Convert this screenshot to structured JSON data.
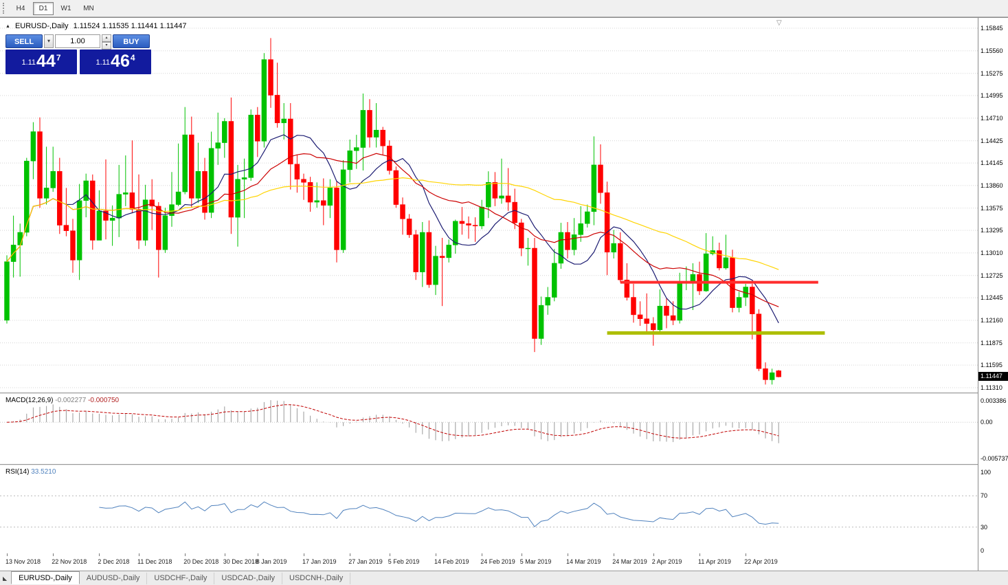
{
  "toolbar": {
    "timeframes": [
      {
        "label": "H4",
        "active": false
      },
      {
        "label": "D1",
        "active": true
      },
      {
        "label": "W1",
        "active": false
      },
      {
        "label": "MN",
        "active": false
      }
    ]
  },
  "icons": {
    "collapse": "▲",
    "scroll_marker": "▽",
    "dropdown": "▾",
    "spin_up": "▴",
    "spin_down": "▾",
    "tab_corner": "◣"
  },
  "chart": {
    "symbol_header": "EURUSD-,Daily",
    "ohlc_text": "1.11524 1.11535 1.11441 1.11447",
    "open": "1.11524",
    "high": "1.11535",
    "low": "1.11441",
    "close": "1.11447",
    "current_price": "1.11447",
    "price_axis_labels": [
      "1.15845",
      "1.15560",
      "1.15275",
      "1.14995",
      "1.14710",
      "1.14425",
      "1.14145",
      "1.13860",
      "1.13575",
      "1.13295",
      "1.13010",
      "1.12725",
      "1.12445",
      "1.12160",
      "1.11875",
      "1.11595",
      "1.11310"
    ],
    "date_axis": [
      {
        "label": "13 Nov 2018",
        "bar": 0
      },
      {
        "label": "22 Nov 2018",
        "bar": 7
      },
      {
        "label": "2 Dec 2018",
        "bar": 14
      },
      {
        "label": "11 Dec 2018",
        "bar": 20
      },
      {
        "label": "20 Dec 2018",
        "bar": 27
      },
      {
        "label": "30 Dec 2018",
        "bar": 33
      },
      {
        "label": "8 Jan 2019",
        "bar": 38
      },
      {
        "label": "17 Jan 2019",
        "bar": 45
      },
      {
        "label": "27 Jan 2019",
        "bar": 52
      },
      {
        "label": "5 Feb 2019",
        "bar": 58
      },
      {
        "label": "14 Feb 2019",
        "bar": 65
      },
      {
        "label": "24 Feb 2019",
        "bar": 72
      },
      {
        "label": "5 Mar 2019",
        "bar": 78
      },
      {
        "label": "14 Mar 2019",
        "bar": 85
      },
      {
        "label": "24 Mar 2019",
        "bar": 92
      },
      {
        "label": "2 Apr 2019",
        "bar": 98
      },
      {
        "label": "11 Apr 2019",
        "bar": 105
      },
      {
        "label": "22 Apr 2019",
        "bar": 112
      }
    ]
  },
  "trade_panel": {
    "sell_label": "SELL",
    "buy_label": "BUY",
    "volume": "1.00",
    "sell_price": {
      "base": "1.11",
      "big": "44",
      "sup": "7"
    },
    "buy_price": {
      "base": "1.11",
      "big": "46",
      "sup": "4"
    }
  },
  "macd_panel": {
    "label": "MACD(12,26,9)",
    "value_main": "-0.002277",
    "value_signal": "-0.000750",
    "axis": [
      "0.003386",
      "0.00",
      "-0.005737"
    ],
    "params": {
      "fast": 12,
      "slow": 26,
      "signal": 9
    }
  },
  "rsi_panel": {
    "label": "RSI(14)",
    "value": "33.5210",
    "period": 14,
    "levels": [
      70,
      30
    ],
    "axis": [
      "100",
      "70",
      "30",
      "0"
    ]
  },
  "tabs": [
    {
      "label": "EURUSD-,Daily",
      "active": true
    },
    {
      "label": "AUDUSD-,Daily",
      "active": false
    },
    {
      "label": "USDCHF-,Daily",
      "active": false
    },
    {
      "label": "USDCAD-,Daily",
      "active": false
    },
    {
      "label": "USDCNH-,Daily",
      "active": false
    }
  ],
  "colors": {
    "candle_up": "#00C200",
    "candle_down": "#FF0000",
    "ma_fast": "#1C1C72",
    "ma_mid": "#CC0000",
    "ma_slow": "#FFD400",
    "resistance": "#FF2D2D",
    "support": "#ADBE00",
    "macd_hist": "#999999",
    "macd_signal": "#C00000",
    "rsi_line": "#4F81BD",
    "grid": "#D4D4D4",
    "tag_bg": "#000000",
    "panel_blue": "#121B9E",
    "button_blue": "#2A5CC0"
  },
  "chart_data": {
    "type": "candlestick",
    "title": "EURUSD-,Daily",
    "symbol": "EURUSD",
    "timeframe": "Daily",
    "y_axis_range": [
      1.11249,
      1.15975
    ],
    "grid": "horizontal-dotted",
    "dates": [
      "2018-11-13",
      "2018-11-14",
      "2018-11-15",
      "2018-11-16",
      "2018-11-19",
      "2018-11-20",
      "2018-11-21",
      "2018-11-22",
      "2018-11-23",
      "2018-11-26",
      "2018-11-27",
      "2018-11-28",
      "2018-11-29",
      "2018-11-30",
      "2018-12-03",
      "2018-12-04",
      "2018-12-05",
      "2018-12-06",
      "2018-12-07",
      "2018-12-10",
      "2018-12-11",
      "2018-12-12",
      "2018-12-13",
      "2018-12-14",
      "2018-12-17",
      "2018-12-18",
      "2018-12-19",
      "2018-12-20",
      "2018-12-21",
      "2018-12-24",
      "2018-12-26",
      "2018-12-27",
      "2018-12-28",
      "2018-12-31",
      "2019-01-02",
      "2019-01-03",
      "2019-01-04",
      "2019-01-07",
      "2019-01-08",
      "2019-01-09",
      "2019-01-10",
      "2019-01-11",
      "2019-01-14",
      "2019-01-15",
      "2019-01-16",
      "2019-01-17",
      "2019-01-18",
      "2019-01-21",
      "2019-01-22",
      "2019-01-23",
      "2019-01-24",
      "2019-01-25",
      "2019-01-28",
      "2019-01-29",
      "2019-01-30",
      "2019-01-31",
      "2019-02-01",
      "2019-02-04",
      "2019-02-05",
      "2019-02-06",
      "2019-02-07",
      "2019-02-08",
      "2019-02-11",
      "2019-02-12",
      "2019-02-13",
      "2019-02-14",
      "2019-02-15",
      "2019-02-18",
      "2019-02-19",
      "2019-02-20",
      "2019-02-21",
      "2019-02-22",
      "2019-02-25",
      "2019-02-26",
      "2019-02-27",
      "2019-02-28",
      "2019-03-01",
      "2019-03-04",
      "2019-03-05",
      "2019-03-06",
      "2019-03-07",
      "2019-03-08",
      "2019-03-11",
      "2019-03-12",
      "2019-03-13",
      "2019-03-14",
      "2019-03-15",
      "2019-03-18",
      "2019-03-19",
      "2019-03-20",
      "2019-03-21",
      "2019-03-22",
      "2019-03-25",
      "2019-03-26",
      "2019-03-27",
      "2019-03-28",
      "2019-03-29",
      "2019-04-01",
      "2019-04-02",
      "2019-04-03",
      "2019-04-04",
      "2019-04-05",
      "2019-04-08",
      "2019-04-09",
      "2019-04-10",
      "2019-04-11",
      "2019-04-12",
      "2019-04-15",
      "2019-04-16",
      "2019-04-17",
      "2019-04-18",
      "2019-04-19",
      "2019-04-22",
      "2019-04-23",
      "2019-04-24",
      "2019-04-25",
      "2019-04-26",
      "2019-04-29"
    ],
    "ohlc": [
      [
        1.1216,
        1.1298,
        1.1212,
        1.129
      ],
      [
        1.129,
        1.1348,
        1.127,
        1.1311
      ],
      [
        1.1311,
        1.1338,
        1.1271,
        1.1327
      ],
      [
        1.1327,
        1.1421,
        1.1322,
        1.1417
      ],
      [
        1.1417,
        1.1466,
        1.1394,
        1.1454
      ],
      [
        1.1454,
        1.1472,
        1.1358,
        1.137
      ],
      [
        1.137,
        1.1435,
        1.1362,
        1.1383
      ],
      [
        1.1383,
        1.1435,
        1.1378,
        1.1404
      ],
      [
        1.1404,
        1.1421,
        1.1325,
        1.1336
      ],
      [
        1.1336,
        1.1383,
        1.1322,
        1.1329
      ],
      [
        1.1329,
        1.1344,
        1.1276,
        1.1292
      ],
      [
        1.1292,
        1.1388,
        1.1267,
        1.1367
      ],
      [
        1.1367,
        1.1401,
        1.1346,
        1.1392
      ],
      [
        1.1392,
        1.14,
        1.1305,
        1.1317
      ],
      [
        1.1317,
        1.138,
        1.1317,
        1.1354
      ],
      [
        1.1354,
        1.1419,
        1.1318,
        1.1342
      ],
      [
        1.1342,
        1.1361,
        1.131,
        1.1345
      ],
      [
        1.1345,
        1.1412,
        1.1321,
        1.1375
      ],
      [
        1.1375,
        1.1424,
        1.136,
        1.1377
      ],
      [
        1.1377,
        1.1443,
        1.1351,
        1.1356
      ],
      [
        1.1356,
        1.14,
        1.1306,
        1.1317
      ],
      [
        1.1317,
        1.1387,
        1.131,
        1.1368
      ],
      [
        1.1368,
        1.1394,
        1.133,
        1.136
      ],
      [
        1.136,
        1.1365,
        1.127,
        1.1305
      ],
      [
        1.1305,
        1.1358,
        1.1301,
        1.1348
      ],
      [
        1.1348,
        1.1403,
        1.1334,
        1.1362
      ],
      [
        1.1362,
        1.1439,
        1.136,
        1.1378
      ],
      [
        1.1378,
        1.1485,
        1.1375,
        1.145
      ],
      [
        1.145,
        1.1473,
        1.1358,
        1.137
      ],
      [
        1.137,
        1.144,
        1.1364,
        1.1404
      ],
      [
        1.1404,
        1.1421,
        1.1343,
        1.1352
      ],
      [
        1.1352,
        1.1454,
        1.1345,
        1.1433
      ],
      [
        1.1433,
        1.1478,
        1.1412,
        1.144
      ],
      [
        1.144,
        1.1471,
        1.1421,
        1.1467
      ],
      [
        1.1467,
        1.1497,
        1.1325,
        1.1346
      ],
      [
        1.1346,
        1.1412,
        1.1309,
        1.1394
      ],
      [
        1.1394,
        1.142,
        1.1345,
        1.1396
      ],
      [
        1.1396,
        1.1482,
        1.1392,
        1.1475
      ],
      [
        1.1475,
        1.1485,
        1.1422,
        1.1442
      ],
      [
        1.1442,
        1.1553,
        1.1434,
        1.1545
      ],
      [
        1.1545,
        1.1572,
        1.1484,
        1.15
      ],
      [
        1.15,
        1.1541,
        1.1459,
        1.1465
      ],
      [
        1.1465,
        1.149,
        1.1444,
        1.147
      ],
      [
        1.147,
        1.149,
        1.1381,
        1.1413
      ],
      [
        1.1413,
        1.1425,
        1.1377,
        1.1394
      ],
      [
        1.1394,
        1.1401,
        1.1368,
        1.139
      ],
      [
        1.139,
        1.1397,
        1.1353,
        1.1365
      ],
      [
        1.1365,
        1.139,
        1.1358,
        1.1367
      ],
      [
        1.1367,
        1.1395,
        1.1336,
        1.1361
      ],
      [
        1.1361,
        1.1394,
        1.1345,
        1.1383
      ],
      [
        1.1383,
        1.1392,
        1.1289,
        1.1305
      ],
      [
        1.1305,
        1.1418,
        1.1301,
        1.1406
      ],
      [
        1.1406,
        1.1444,
        1.139,
        1.143
      ],
      [
        1.143,
        1.145,
        1.1407,
        1.1434
      ],
      [
        1.1434,
        1.1502,
        1.1405,
        1.1481
      ],
      [
        1.1481,
        1.1495,
        1.1434,
        1.1447
      ],
      [
        1.1447,
        1.149,
        1.1434,
        1.1456
      ],
      [
        1.1456,
        1.146,
        1.1425,
        1.1436
      ],
      [
        1.1436,
        1.1443,
        1.14,
        1.1405
      ],
      [
        1.1405,
        1.141,
        1.1358,
        1.1362
      ],
      [
        1.1362,
        1.1371,
        1.1324,
        1.1344
      ],
      [
        1.1344,
        1.135,
        1.132,
        1.1324
      ],
      [
        1.1324,
        1.133,
        1.1267,
        1.1277
      ],
      [
        1.1277,
        1.134,
        1.1258,
        1.1327
      ],
      [
        1.1327,
        1.1342,
        1.1257,
        1.1261
      ],
      [
        1.1261,
        1.131,
        1.1248,
        1.1297
      ],
      [
        1.1297,
        1.132,
        1.1234,
        1.1295
      ],
      [
        1.1295,
        1.1318,
        1.1289,
        1.1311
      ],
      [
        1.1311,
        1.1343,
        1.13,
        1.1341
      ],
      [
        1.1341,
        1.1359,
        1.1324,
        1.1338
      ],
      [
        1.1338,
        1.1347,
        1.1319,
        1.1336
      ],
      [
        1.1336,
        1.1346,
        1.1315,
        1.1335
      ],
      [
        1.1335,
        1.1368,
        1.1331,
        1.1359
      ],
      [
        1.1359,
        1.1404,
        1.1345,
        1.139
      ],
      [
        1.139,
        1.1403,
        1.136,
        1.137
      ],
      [
        1.137,
        1.142,
        1.1363,
        1.1373
      ],
      [
        1.1373,
        1.1408,
        1.1354,
        1.1365
      ],
      [
        1.1365,
        1.1382,
        1.1331,
        1.1339
      ],
      [
        1.1339,
        1.1344,
        1.1297,
        1.1307
      ],
      [
        1.1307,
        1.132,
        1.1285,
        1.1307
      ],
      [
        1.1307,
        1.132,
        1.1176,
        1.1193
      ],
      [
        1.1193,
        1.1246,
        1.1185,
        1.1235
      ],
      [
        1.1235,
        1.1258,
        1.1223,
        1.1245
      ],
      [
        1.1245,
        1.1306,
        1.124,
        1.1288
      ],
      [
        1.1288,
        1.1339,
        1.1281,
        1.1327
      ],
      [
        1.1327,
        1.134,
        1.1294,
        1.1305
      ],
      [
        1.1305,
        1.1345,
        1.1298,
        1.1324
      ],
      [
        1.1324,
        1.136,
        1.1315,
        1.1338
      ],
      [
        1.1338,
        1.1362,
        1.1333,
        1.1353
      ],
      [
        1.1353,
        1.1448,
        1.1336,
        1.1412
      ],
      [
        1.1412,
        1.1438,
        1.1363,
        1.1377
      ],
      [
        1.1377,
        1.1391,
        1.1273,
        1.1302
      ],
      [
        1.1302,
        1.133,
        1.1294,
        1.1313
      ],
      [
        1.1313,
        1.1327,
        1.1264,
        1.1267
      ],
      [
        1.1267,
        1.1288,
        1.1241,
        1.1245
      ],
      [
        1.1245,
        1.1262,
        1.1213,
        1.1223
      ],
      [
        1.1223,
        1.124,
        1.1209,
        1.1218
      ],
      [
        1.1218,
        1.125,
        1.1199,
        1.1212
      ],
      [
        1.1212,
        1.122,
        1.1184,
        1.1204
      ],
      [
        1.1204,
        1.1255,
        1.12,
        1.1234
      ],
      [
        1.1234,
        1.1244,
        1.1206,
        1.1222
      ],
      [
        1.1222,
        1.124,
        1.121,
        1.1216
      ],
      [
        1.1216,
        1.1276,
        1.1212,
        1.1263
      ],
      [
        1.1263,
        1.1284,
        1.1254,
        1.1264
      ],
      [
        1.1264,
        1.1288,
        1.1229,
        1.1274
      ],
      [
        1.1274,
        1.129,
        1.1248,
        1.1253
      ],
      [
        1.1253,
        1.1326,
        1.1252,
        1.13
      ],
      [
        1.13,
        1.1322,
        1.1298,
        1.1304
      ],
      [
        1.1304,
        1.1314,
        1.1279,
        1.1282
      ],
      [
        1.1282,
        1.1324,
        1.128,
        1.1295
      ],
      [
        1.1295,
        1.1305,
        1.1226,
        1.1232
      ],
      [
        1.1232,
        1.1252,
        1.1226,
        1.1245
      ],
      [
        1.1245,
        1.1262,
        1.1234,
        1.1258
      ],
      [
        1.1258,
        1.1262,
        1.1192,
        1.1224
      ],
      [
        1.1224,
        1.123,
        1.1152,
        1.1155
      ],
      [
        1.1155,
        1.1163,
        1.1135,
        1.1141
      ],
      [
        1.1141,
        1.1155,
        1.1135,
        1.115
      ],
      [
        1.11524,
        1.11535,
        1.11441,
        1.11447
      ]
    ],
    "moving_averages": [
      {
        "period": 10,
        "color": "#1C1C72"
      },
      {
        "period": 20,
        "color": "#CC0000"
      },
      {
        "period": 50,
        "color": "#FFD400"
      }
    ],
    "hlines": [
      {
        "name": "resistance-line",
        "price": 1.1264,
        "color": "#FF2D2D",
        "width": 4,
        "from_bar": 93,
        "to_bar": 123
      },
      {
        "name": "support-line",
        "price": 1.12,
        "color": "#ADBE00",
        "width": 5,
        "from_bar": 91,
        "to_bar": 124
      }
    ],
    "indicators": [
      {
        "type": "MACD",
        "fast": 12,
        "slow": 26,
        "signal": 9,
        "current_main": -0.002277,
        "current_signal": -0.00075,
        "axis_max": 0.003386,
        "axis_min": -0.005737
      },
      {
        "type": "RSI",
        "period": 14,
        "current": 33.521,
        "levels": [
          70,
          30
        ],
        "range": [
          0,
          100
        ]
      }
    ]
  }
}
